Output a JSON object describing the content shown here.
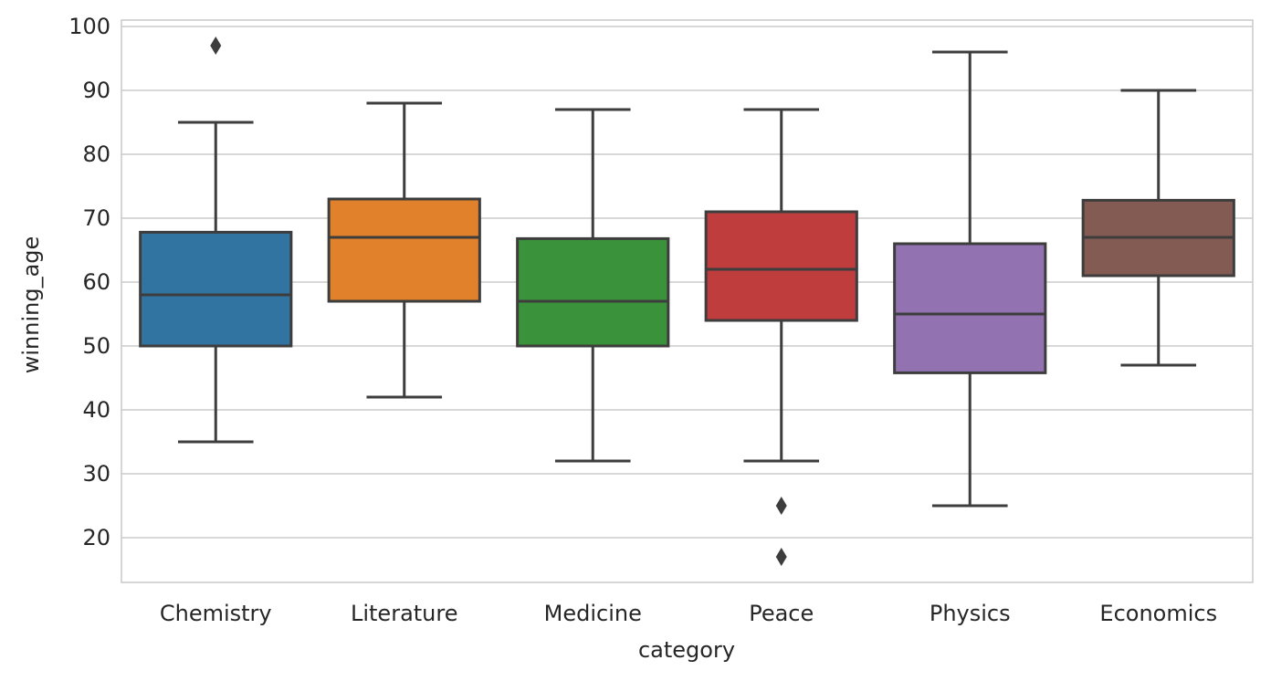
{
  "chart_data": {
    "type": "box",
    "xlabel": "category",
    "ylabel": "winning_age",
    "ylim": [
      13,
      101
    ],
    "yticks": [
      20,
      30,
      40,
      50,
      60,
      70,
      80,
      90,
      100
    ],
    "grid": "horizontal",
    "line_color": "#3d3d3d",
    "categories": [
      "Chemistry",
      "Literature",
      "Medicine",
      "Peace",
      "Physics",
      "Economics"
    ],
    "boxes": [
      {
        "category": "Chemistry",
        "color": "#3274a1",
        "whisker_low": 35,
        "q1": 50,
        "median": 58,
        "q3": 67.8,
        "whisker_high": 85,
        "outliers": [
          97
        ]
      },
      {
        "category": "Literature",
        "color": "#e1812c",
        "whisker_low": 42,
        "q1": 57,
        "median": 67,
        "q3": 73,
        "whisker_high": 88,
        "outliers": []
      },
      {
        "category": "Medicine",
        "color": "#3a923a",
        "whisker_low": 32,
        "q1": 50,
        "median": 57,
        "q3": 66.8,
        "whisker_high": 87,
        "outliers": []
      },
      {
        "category": "Peace",
        "color": "#c03d3e",
        "whisker_low": 32,
        "q1": 54,
        "median": 62,
        "q3": 71,
        "whisker_high": 87,
        "outliers": [
          25,
          17
        ]
      },
      {
        "category": "Physics",
        "color": "#9372b2",
        "whisker_low": 25,
        "q1": 45.8,
        "median": 55,
        "q3": 66,
        "whisker_high": 96,
        "outliers": []
      },
      {
        "category": "Economics",
        "color": "#845b53",
        "whisker_low": 47,
        "q1": 61,
        "median": 67,
        "q3": 72.8,
        "whisker_high": 90,
        "outliers": []
      }
    ]
  }
}
